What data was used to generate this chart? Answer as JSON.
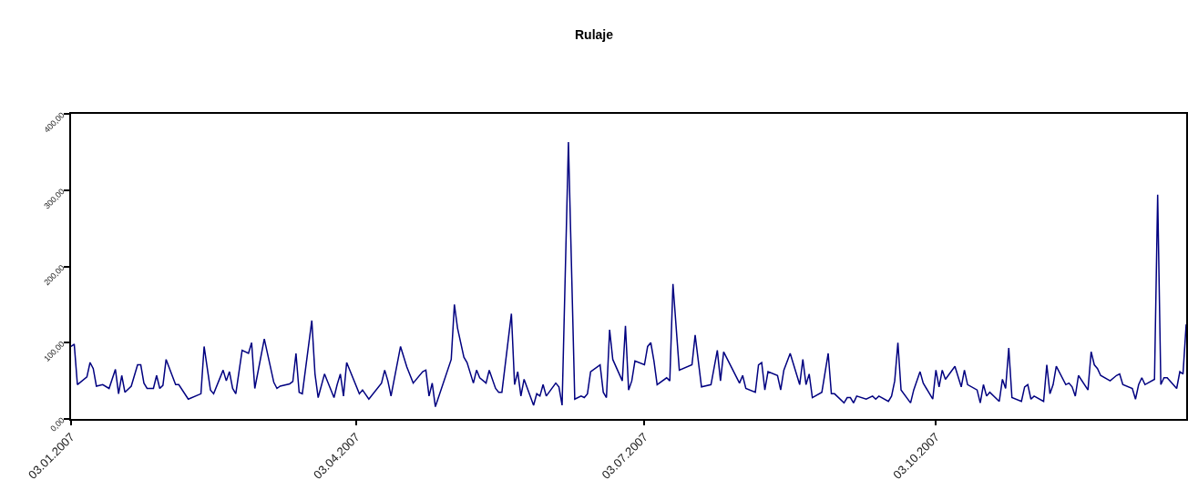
{
  "chart_data": {
    "type": "line",
    "title": "Rulaje",
    "marker": "none",
    "line_style": "solid",
    "xlim": [
      "2007-01-03",
      "2007-12-21"
    ],
    "xticks": [
      {
        "value": "2007-01-03",
        "label": "03.01.2007"
      },
      {
        "value": "2007-04-03",
        "label": "03.04.2007"
      },
      {
        "value": "2007-07-03",
        "label": "03.07.2007"
      },
      {
        "value": "2007-10-03",
        "label": "03.10.2007"
      }
    ],
    "ylim": [
      0,
      400
    ],
    "yticks": [
      {
        "value": 0,
        "label": "0,00"
      },
      {
        "value": 100,
        "label": "100,00"
      },
      {
        "value": 200,
        "label": "200,00"
      },
      {
        "value": 300,
        "label": "300,00"
      },
      {
        "value": 400,
        "label": "400,00"
      }
    ],
    "x": [
      "2007-01-03",
      "2007-01-04",
      "2007-01-05",
      "2007-01-08",
      "2007-01-09",
      "2007-01-10",
      "2007-01-11",
      "2007-01-13",
      "2007-01-15",
      "2007-01-17",
      "2007-01-18",
      "2007-01-19",
      "2007-01-20",
      "2007-01-22",
      "2007-01-24",
      "2007-01-25",
      "2007-01-26",
      "2007-01-27",
      "2007-01-29",
      "2007-01-30",
      "2007-01-31",
      "2007-02-01",
      "2007-02-02",
      "2007-02-05",
      "2007-02-06",
      "2007-02-09",
      "2007-02-13",
      "2007-02-14",
      "2007-02-16",
      "2007-02-17",
      "2007-02-20",
      "2007-02-21",
      "2007-02-22",
      "2007-02-23",
      "2007-02-24",
      "2007-02-26",
      "2007-02-28",
      "2007-03-01",
      "2007-03-02",
      "2007-03-05",
      "2007-03-08",
      "2007-03-09",
      "2007-03-10",
      "2007-03-13",
      "2007-03-14",
      "2007-03-15",
      "2007-03-16",
      "2007-03-17",
      "2007-03-20",
      "2007-03-21",
      "2007-03-22",
      "2007-03-24",
      "2007-03-27",
      "2007-03-28",
      "2007-03-29",
      "2007-03-30",
      "2007-03-31",
      "2007-04-04",
      "2007-04-05",
      "2007-04-07",
      "2007-04-11",
      "2007-04-12",
      "2007-04-13",
      "2007-04-14",
      "2007-04-17",
      "2007-04-19",
      "2007-04-21",
      "2007-04-24",
      "2007-04-25",
      "2007-04-26",
      "2007-04-27",
      "2007-04-28",
      "2007-05-03",
      "2007-05-04",
      "2007-05-05",
      "2007-05-07",
      "2007-05-08",
      "2007-05-10",
      "2007-05-11",
      "2007-05-12",
      "2007-05-14",
      "2007-05-15",
      "2007-05-17",
      "2007-05-18",
      "2007-05-19",
      "2007-05-22",
      "2007-05-23",
      "2007-05-24",
      "2007-05-25",
      "2007-05-26",
      "2007-05-29",
      "2007-05-30",
      "2007-05-31",
      "2007-06-01",
      "2007-06-02",
      "2007-06-05",
      "2007-06-06",
      "2007-06-07",
      "2007-06-09",
      "2007-06-11",
      "2007-06-13",
      "2007-06-14",
      "2007-06-15",
      "2007-06-16",
      "2007-06-19",
      "2007-06-20",
      "2007-06-21",
      "2007-06-22",
      "2007-06-23",
      "2007-06-26",
      "2007-06-27",
      "2007-06-28",
      "2007-06-29",
      "2007-06-30",
      "2007-07-03",
      "2007-07-04",
      "2007-07-05",
      "2007-07-06",
      "2007-07-07",
      "2007-07-10",
      "2007-07-11",
      "2007-07-12",
      "2007-07-14",
      "2007-07-18",
      "2007-07-19",
      "2007-07-21",
      "2007-07-24",
      "2007-07-26",
      "2007-07-27",
      "2007-07-28",
      "2007-08-02",
      "2007-08-03",
      "2007-08-04",
      "2007-08-07",
      "2007-08-08",
      "2007-08-09",
      "2007-08-10",
      "2007-08-11",
      "2007-08-14",
      "2007-08-15",
      "2007-08-16",
      "2007-08-18",
      "2007-08-21",
      "2007-08-22",
      "2007-08-23",
      "2007-08-24",
      "2007-08-25",
      "2007-08-28",
      "2007-08-30",
      "2007-08-31",
      "2007-09-01",
      "2007-09-04",
      "2007-09-05",
      "2007-09-06",
      "2007-09-07",
      "2007-09-08",
      "2007-09-11",
      "2007-09-13",
      "2007-09-14",
      "2007-09-15",
      "2007-09-18",
      "2007-09-19",
      "2007-09-20",
      "2007-09-21",
      "2007-09-22",
      "2007-09-25",
      "2007-09-26",
      "2007-09-28",
      "2007-09-29",
      "2007-10-02",
      "2007-10-03",
      "2007-10-04",
      "2007-10-05",
      "2007-10-06",
      "2007-10-09",
      "2007-10-11",
      "2007-10-12",
      "2007-10-13",
      "2007-10-16",
      "2007-10-17",
      "2007-10-18",
      "2007-10-19",
      "2007-10-20",
      "2007-10-23",
      "2007-10-24",
      "2007-10-25",
      "2007-10-26",
      "2007-10-27",
      "2007-10-30",
      "2007-10-31",
      "2007-11-01",
      "2007-11-02",
      "2007-11-03",
      "2007-11-06",
      "2007-11-07",
      "2007-11-08",
      "2007-11-09",
      "2007-11-10",
      "2007-11-13",
      "2007-11-14",
      "2007-11-15",
      "2007-11-16",
      "2007-11-17",
      "2007-11-20",
      "2007-11-21",
      "2007-11-22",
      "2007-11-23",
      "2007-11-24",
      "2007-11-27",
      "2007-11-29",
      "2007-11-30",
      "2007-12-01",
      "2007-12-04",
      "2007-12-05",
      "2007-12-06",
      "2007-12-07",
      "2007-12-08",
      "2007-12-11",
      "2007-12-12",
      "2007-12-13",
      "2007-12-14",
      "2007-12-15",
      "2007-12-18",
      "2007-12-19",
      "2007-12-20",
      "2007-12-21"
    ],
    "series": [
      {
        "color": "#000080",
        "values": [
          95,
          98,
          45,
          55,
          74,
          66,
          43,
          45,
          40,
          65,
          33,
          57,
          35,
          43,
          71,
          71,
          47,
          40,
          40,
          57,
          40,
          44,
          78,
          45,
          45,
          26,
          33,
          95,
          38,
          33,
          64,
          50,
          62,
          40,
          33,
          90,
          86,
          100,
          40,
          105,
          48,
          40,
          43,
          46,
          49,
          86,
          35,
          33,
          129,
          59,
          28,
          59,
          28,
          45,
          59,
          30,
          74,
          33,
          38,
          26,
          47,
          64,
          50,
          30,
          95,
          68,
          47,
          62,
          64,
          30,
          47,
          16,
          78,
          150,
          119,
          81,
          74,
          47,
          64,
          54,
          47,
          64,
          40,
          35,
          35,
          138,
          45,
          62,
          30,
          52,
          18,
          33,
          30,
          45,
          30,
          47,
          42,
          18,
          363,
          26,
          30,
          28,
          33,
          62,
          71,
          35,
          28,
          117,
          78,
          50,
          122,
          38,
          50,
          76,
          71,
          95,
          100,
          76,
          45,
          54,
          50,
          177,
          64,
          71,
          110,
          42,
          45,
          90,
          50,
          88,
          47,
          57,
          40,
          35,
          71,
          74,
          38,
          62,
          57,
          38,
          64,
          86,
          45,
          78,
          45,
          59,
          28,
          35,
          86,
          33,
          33,
          21,
          28,
          28,
          21,
          30,
          26,
          30,
          26,
          30,
          23,
          30,
          50,
          100,
          38,
          21,
          38,
          62,
          47,
          26,
          64,
          42,
          64,
          52,
          69,
          42,
          64,
          45,
          38,
          21,
          45,
          30,
          35,
          23,
          52,
          40,
          93,
          28,
          23,
          42,
          45,
          26,
          30,
          23,
          71,
          33,
          45,
          69,
          45,
          47,
          42,
          30,
          57,
          38,
          88,
          71,
          66,
          57,
          50,
          57,
          59,
          45,
          40,
          26,
          45,
          54,
          45,
          52,
          294,
          45,
          54,
          54,
          40,
          62,
          59,
          124
        ]
      }
    ]
  }
}
